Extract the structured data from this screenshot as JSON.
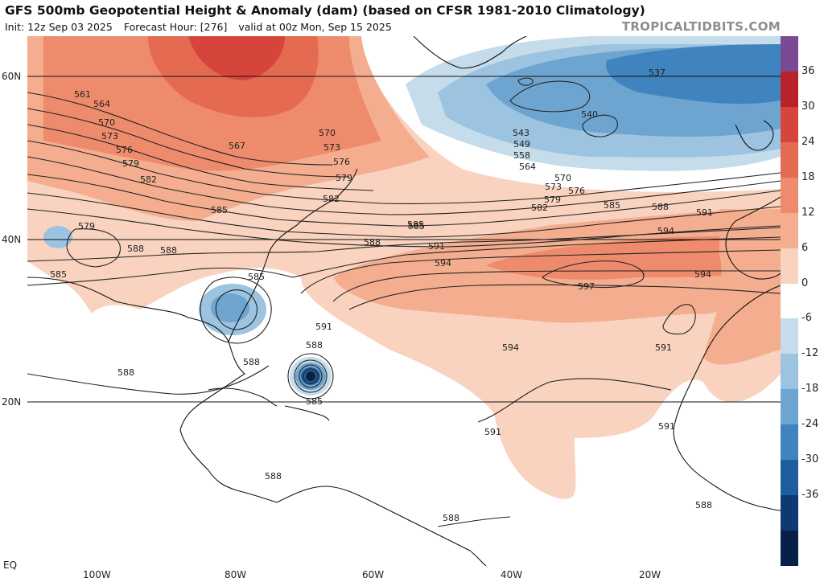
{
  "header": {
    "title": "GFS 500mb Geopotential Height & Anomaly (dam) (based on CFSR 1981-2010 Climatology)",
    "init": "Init: 12z Sep 03 2025",
    "forecast_hour": "Forecast Hour: [276]",
    "valid": "valid at 00z Mon, Sep 15 2025",
    "watermark": "TROPICALTIDBITS.COM"
  },
  "axes": {
    "lat_labels": [
      "60N",
      "40N",
      "20N",
      "EQ"
    ],
    "lon_labels": [
      "100W",
      "80W",
      "60W",
      "40W",
      "20W"
    ]
  },
  "colorbar": {
    "labels": [
      "36",
      "30",
      "24",
      "18",
      "12",
      "6",
      "0",
      "-6",
      "-12",
      "-18",
      "-24",
      "-30",
      "-36"
    ],
    "colors": [
      "#7b4a94",
      "#b8222a",
      "#d6453c",
      "#e56a52",
      "#ee8b6c",
      "#f4ae8f",
      "#f9d3bf",
      "#ffffff",
      "#c5dceb",
      "#9cc3df",
      "#6ea5d0",
      "#3f83bf",
      "#1e5d9e",
      "#0e3a73",
      "#06204a"
    ]
  },
  "contour_labels": {
    "nw_cluster": [
      "561",
      "564",
      "570",
      "573",
      "576",
      "579",
      "582",
      "585"
    ],
    "west_misc": [
      "579",
      "588",
      "585",
      "567",
      "570",
      "573",
      "576",
      "579",
      "582",
      "585",
      "585"
    ],
    "north_atlantic_low": [
      "537",
      "540",
      "543",
      "549",
      "558",
      "564",
      "570",
      "573",
      "576",
      "579",
      "582"
    ],
    "ridge": [
      "585",
      "588",
      "591",
      "585",
      "588",
      "591",
      "594",
      "594",
      "597",
      "594",
      "594",
      "591"
    ],
    "south": [
      "591",
      "588",
      "588",
      "585",
      "591",
      "591",
      "588",
      "588",
      "588",
      "588",
      "588"
    ]
  }
}
